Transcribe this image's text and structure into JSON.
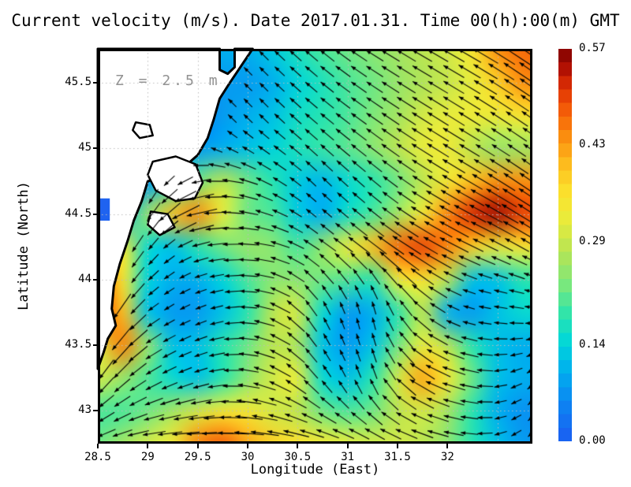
{
  "chart_data": {
    "type": "heatmap",
    "title": "Current velocity (m/s). Date 2017.01.31. Time 00(h):00(m) GMT",
    "annotation": "Z = 2.5 m",
    "xlabel": "Longitude (East)",
    "ylabel": "Latitude (North)",
    "xlim": [
      28.5,
      32.85
    ],
    "ylim": [
      42.75,
      45.76
    ],
    "xticks": [
      28.5,
      29,
      29.5,
      30,
      30.5,
      31,
      31.5,
      32
    ],
    "yticks": [
      43,
      43.5,
      44,
      44.5,
      45,
      45.5
    ],
    "xgrid": [
      29,
      29.5,
      30,
      30.5,
      31,
      31.5,
      32,
      32.5
    ],
    "ygrid": [
      43,
      43.5,
      44,
      44.5,
      45,
      45.5
    ],
    "grid": true,
    "legend": "none",
    "colorbar": {
      "min": 0.0,
      "max": 0.57,
      "units": "m/s",
      "segments": 29,
      "tick_labels": [
        "0.00",
        "0.14",
        "0.29",
        "0.43",
        "0.57"
      ],
      "tick_values": [
        0.0,
        0.14,
        0.29,
        0.43,
        0.57
      ]
    },
    "colormap": [
      [
        0.0,
        "#1b5df2"
      ],
      [
        0.1,
        "#0c86f2"
      ],
      [
        0.18,
        "#00b0ee"
      ],
      [
        0.25,
        "#00d6da"
      ],
      [
        0.32,
        "#2ae4ae"
      ],
      [
        0.4,
        "#7ce87c"
      ],
      [
        0.48,
        "#b4e455"
      ],
      [
        0.56,
        "#e8ec3c"
      ],
      [
        0.63,
        "#fbe32e"
      ],
      [
        0.7,
        "#fdc01f"
      ],
      [
        0.77,
        "#fb9110"
      ],
      [
        0.84,
        "#f55f08"
      ],
      [
        0.9,
        "#e03104"
      ],
      [
        0.95,
        "#b01003"
      ],
      [
        1.0,
        "#7f0000"
      ]
    ],
    "speed_grid": {
      "units": "m/s",
      "lon_start": 28.5,
      "lon_step": 0.25,
      "lat_start": 45.75,
      "lat_step": -0.25,
      "values": [
        [
          0.05,
          0.05,
          0.05,
          0.05,
          0.08,
          0.1,
          0.1,
          0.13,
          0.17,
          0.2,
          0.22,
          0.24,
          0.26,
          0.28,
          0.3,
          0.35,
          0.44,
          0.47
        ],
        [
          0.05,
          0.05,
          0.05,
          0.05,
          0.06,
          0.08,
          0.08,
          0.1,
          0.14,
          0.17,
          0.2,
          0.22,
          0.25,
          0.27,
          0.29,
          0.32,
          0.38,
          0.44
        ],
        [
          0.05,
          0.05,
          0.05,
          0.05,
          0.05,
          0.08,
          0.1,
          0.12,
          0.16,
          0.18,
          0.2,
          0.23,
          0.26,
          0.3,
          0.32,
          0.33,
          0.33,
          0.35
        ],
        [
          0.05,
          0.05,
          0.05,
          0.06,
          0.08,
          0.1,
          0.12,
          0.14,
          0.17,
          0.19,
          0.21,
          0.24,
          0.28,
          0.32,
          0.33,
          0.28,
          0.25,
          0.26
        ],
        [
          0.05,
          0.05,
          0.08,
          0.15,
          0.22,
          0.28,
          0.22,
          0.18,
          0.13,
          0.11,
          0.15,
          0.18,
          0.22,
          0.28,
          0.34,
          0.4,
          0.44,
          0.44
        ],
        [
          0.05,
          0.1,
          0.25,
          0.4,
          0.44,
          0.32,
          0.22,
          0.2,
          0.13,
          0.1,
          0.16,
          0.2,
          0.26,
          0.34,
          0.45,
          0.52,
          0.55,
          0.5
        ],
        [
          0.28,
          0.35,
          0.15,
          0.12,
          0.18,
          0.22,
          0.25,
          0.24,
          0.2,
          0.25,
          0.33,
          0.4,
          0.47,
          0.5,
          0.45,
          0.38,
          0.32,
          0.35
        ],
        [
          0.5,
          0.35,
          0.14,
          0.1,
          0.1,
          0.14,
          0.2,
          0.24,
          0.24,
          0.22,
          0.2,
          0.18,
          0.33,
          0.35,
          0.28,
          0.12,
          0.12,
          0.18
        ],
        [
          0.52,
          0.4,
          0.12,
          0.08,
          0.08,
          0.12,
          0.18,
          0.28,
          0.3,
          0.15,
          0.08,
          0.1,
          0.18,
          0.28,
          0.1,
          0.08,
          0.12,
          0.15
        ],
        [
          0.3,
          0.45,
          0.25,
          0.12,
          0.12,
          0.18,
          0.22,
          0.28,
          0.26,
          0.12,
          0.08,
          0.12,
          0.22,
          0.32,
          0.28,
          0.18,
          0.12,
          0.1
        ],
        [
          0.3,
          0.25,
          0.2,
          0.15,
          0.12,
          0.18,
          0.24,
          0.3,
          0.32,
          0.15,
          0.12,
          0.18,
          0.3,
          0.42,
          0.34,
          0.22,
          0.12,
          0.1
        ],
        [
          0.2,
          0.2,
          0.22,
          0.26,
          0.3,
          0.34,
          0.34,
          0.3,
          0.28,
          0.22,
          0.2,
          0.22,
          0.28,
          0.3,
          0.26,
          0.18,
          0.1,
          0.07
        ],
        [
          0.22,
          0.26,
          0.3,
          0.34,
          0.45,
          0.48,
          0.42,
          0.38,
          0.36,
          0.34,
          0.32,
          0.3,
          0.3,
          0.28,
          0.24,
          0.18,
          0.12,
          0.08
        ]
      ]
    },
    "direction_grid": {
      "convention": "flow direction, degrees CCW from east",
      "lon_start": 28.5,
      "lon_step": 0.54375,
      "lat_start": 45.75,
      "lat_step": -0.5,
      "values": [
        [
          250,
          250,
          140,
          135,
          140,
          148,
          150,
          150,
          145
        ],
        [
          250,
          250,
          135,
          135,
          140,
          145,
          148,
          148,
          145
        ],
        [
          250,
          240,
          185,
          155,
          135,
          140,
          148,
          150,
          145
        ],
        [
          252,
          230,
          190,
          172,
          145,
          142,
          150,
          155,
          150
        ],
        [
          250,
          215,
          200,
          168,
          120,
          100,
          140,
          170,
          175
        ],
        [
          235,
          210,
          195,
          162,
          130,
          108,
          150,
          172,
          215
        ],
        [
          200,
          185,
          180,
          175,
          168,
          158,
          162,
          178,
          225
        ]
      ]
    },
    "coastline": [
      [
        28.5,
        45.76
      ],
      [
        29.72,
        45.76
      ],
      [
        29.72,
        45.6
      ],
      [
        29.8,
        45.57
      ],
      [
        29.87,
        45.62
      ],
      [
        29.87,
        45.76
      ],
      [
        30.05,
        45.76
      ],
      [
        29.82,
        45.5
      ],
      [
        29.72,
        45.38
      ],
      [
        29.66,
        45.22
      ],
      [
        29.6,
        45.08
      ],
      [
        29.5,
        44.95
      ],
      [
        29.32,
        44.83
      ],
      [
        29.0,
        44.75
      ],
      [
        28.94,
        44.6
      ],
      [
        28.86,
        44.45
      ],
      [
        28.8,
        44.3
      ],
      [
        28.72,
        44.12
      ],
      [
        28.66,
        43.95
      ],
      [
        28.64,
        43.78
      ],
      [
        28.68,
        43.65
      ],
      [
        28.6,
        43.55
      ],
      [
        28.56,
        43.45
      ],
      [
        28.5,
        43.32
      ]
    ],
    "lakes": [
      [
        [
          29.05,
          44.9
        ],
        [
          29.28,
          44.94
        ],
        [
          29.48,
          44.88
        ],
        [
          29.55,
          44.74
        ],
        [
          29.47,
          44.62
        ],
        [
          29.28,
          44.6
        ],
        [
          29.08,
          44.68
        ],
        [
          29.0,
          44.8
        ]
      ],
      [
        [
          29.03,
          44.52
        ],
        [
          29.2,
          44.5
        ],
        [
          29.27,
          44.4
        ],
        [
          29.12,
          44.34
        ],
        [
          29.0,
          44.42
        ]
      ],
      [
        [
          28.88,
          45.2
        ],
        [
          29.02,
          45.18
        ],
        [
          29.05,
          45.1
        ],
        [
          28.92,
          45.08
        ],
        [
          28.85,
          45.14
        ]
      ]
    ],
    "coast_boundary": [
      [
        45.76,
        30.06
      ],
      [
        45.6,
        29.9
      ],
      [
        45.45,
        29.82
      ],
      [
        45.3,
        29.7
      ],
      [
        45.1,
        29.62
      ],
      [
        44.95,
        29.52
      ],
      [
        44.85,
        29.36
      ],
      [
        44.76,
        29.05
      ],
      [
        44.6,
        28.96
      ],
      [
        44.45,
        28.88
      ],
      [
        44.3,
        28.82
      ],
      [
        44.12,
        28.74
      ],
      [
        43.95,
        28.68
      ],
      [
        43.78,
        28.66
      ],
      [
        43.65,
        28.7
      ],
      [
        43.55,
        28.62
      ],
      [
        43.45,
        28.58
      ],
      [
        43.32,
        28.52
      ],
      [
        43.2,
        28.4
      ],
      [
        42.74,
        28.4
      ]
    ],
    "inland_water_cell": {
      "lon": [
        28.5,
        28.62
      ],
      "lat": [
        44.45,
        44.62
      ]
    },
    "colors": {
      "land": "#ffffff",
      "coast_stroke": "#000000",
      "arrows": "#000000",
      "gridline": "#bdbdbd",
      "annotation_text": "#929292",
      "frame": "#000000"
    }
  }
}
